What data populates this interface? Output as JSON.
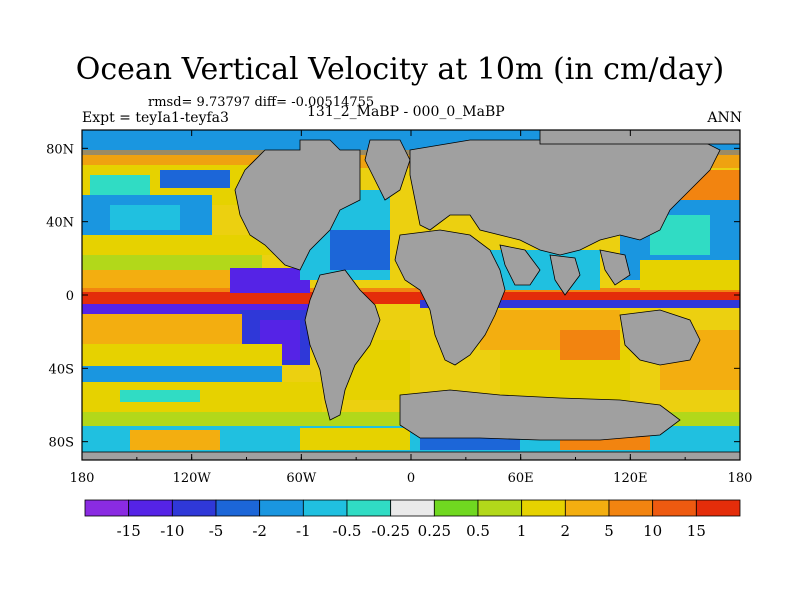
{
  "title": "Ocean Vertical Velocity at 10m (in cm/day)",
  "stats": "rmsd= 9.73797 diff= -0.00514755",
  "expt": "Expt = teyIa1-teyfa3",
  "center_label": "131_2_MaBP - 000_0_MaBP",
  "season": "ANN",
  "lon_ticks": [
    {
      "value": -180,
      "label": "180"
    },
    {
      "value": -120,
      "label": "120W"
    },
    {
      "value": -60,
      "label": "60W"
    },
    {
      "value": 0,
      "label": "0"
    },
    {
      "value": 60,
      "label": "60E"
    },
    {
      "value": 120,
      "label": "120E"
    },
    {
      "value": 180,
      "label": "180"
    }
  ],
  "lat_ticks": [
    {
      "value": 80,
      "label": "80N"
    },
    {
      "value": 40,
      "label": "40N"
    },
    {
      "value": 0,
      "label": "0"
    },
    {
      "value": -40,
      "label": "40S"
    },
    {
      "value": -80,
      "label": "80S"
    }
  ],
  "colorbar": {
    "colors": [
      "#8a2be2",
      "#5523e6",
      "#2f38d8",
      "#1c66d8",
      "#1a96e0",
      "#20c0e0",
      "#30dcc4",
      "#eaeaea",
      "#70d820",
      "#b2d81a",
      "#e6d200",
      "#f3ae10",
      "#f28410",
      "#ee5a10",
      "#e42d0a"
    ],
    "labels": [
      "-15",
      "-10",
      "-5",
      "-2",
      "-1",
      "-0.5",
      "-0.25",
      "0.25",
      "0.5",
      "1",
      "2",
      "5",
      "10",
      "15"
    ]
  },
  "land_color": "#a0a0a0"
}
